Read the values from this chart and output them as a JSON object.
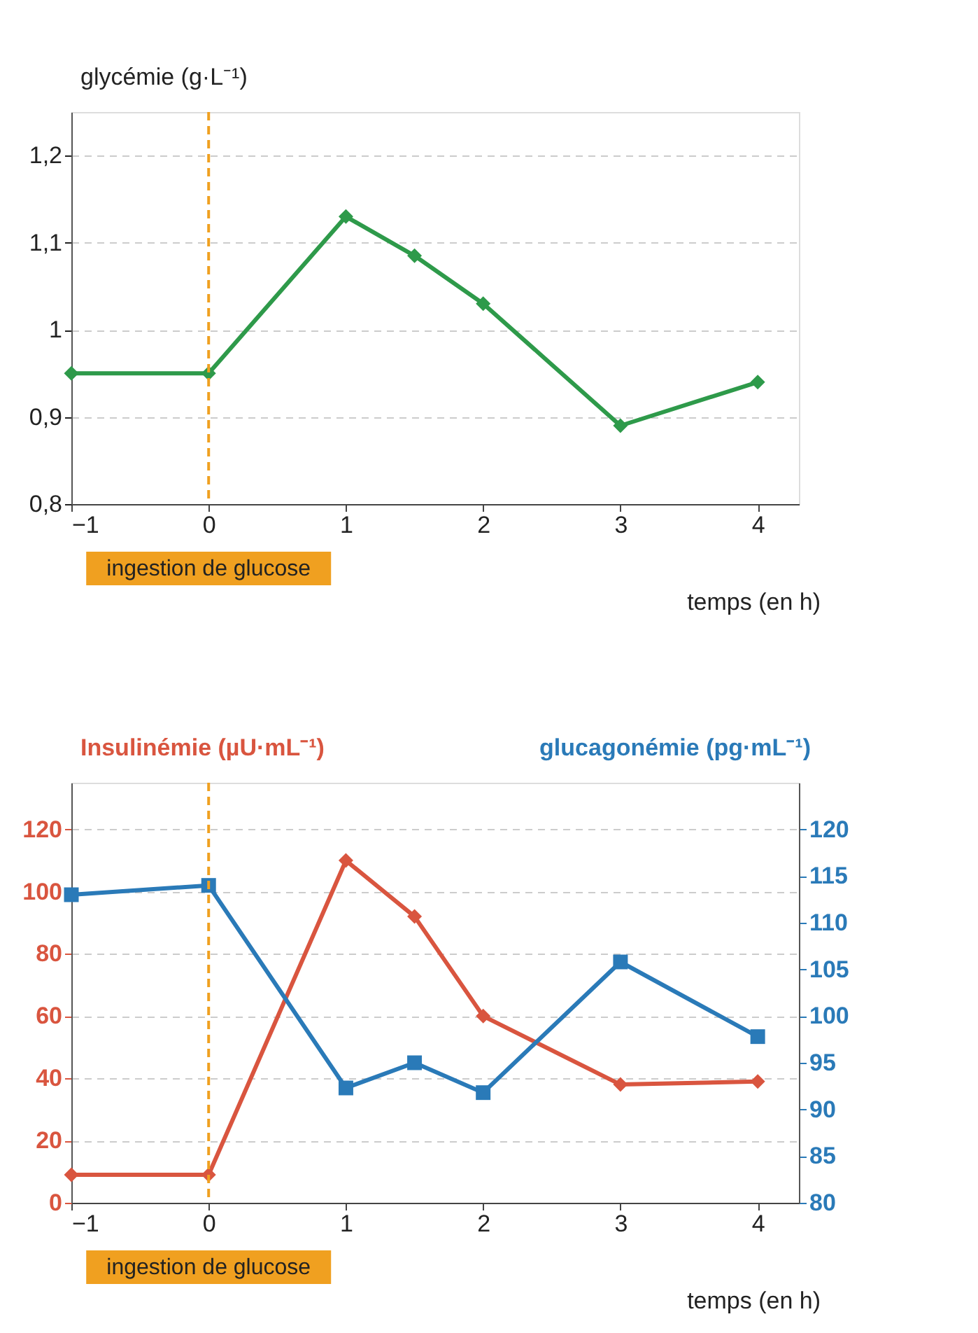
{
  "chart_data": [
    {
      "type": "line",
      "ylabel": "glycémie (g·L⁻¹)",
      "xlabel": "temps (en h)",
      "x": [
        -1,
        0,
        1,
        1.5,
        2,
        3,
        4
      ],
      "xlim": [
        -1,
        4.3
      ],
      "xticks": [
        -1,
        0,
        1,
        2,
        3,
        4
      ],
      "ylim": [
        0.8,
        1.25
      ],
      "yticks": [
        {
          "value": 0.8,
          "label": "0,8"
        },
        {
          "value": 0.9,
          "label": "0,9"
        },
        1,
        {
          "value": 1.1,
          "label": "1,1"
        },
        {
          "value": 1.2,
          "label": "1,2"
        }
      ],
      "grid": "y",
      "marker": "diamond",
      "line_style": "solid",
      "series": [
        {
          "color": "#2e9a4a",
          "values": [
            0.95,
            0.95,
            1.13,
            1.085,
            1.03,
            0.89,
            0.94
          ]
        }
      ],
      "ref_lines": [
        {
          "axis": "x",
          "value": 0,
          "label": "ingestion de glucose",
          "color": "#f0a020",
          "line_style": "dashed"
        }
      ]
    },
    {
      "type": "line",
      "ylabel": "Insulinémie (µU·mL⁻¹)",
      "y2label": "glucagonémie (pg·mL⁻¹)",
      "xlabel": "temps (en h)",
      "x": [
        -1,
        0,
        1,
        1.5,
        2,
        3,
        4
      ],
      "xlim": [
        -1,
        4.3
      ],
      "xticks": [
        -1,
        0,
        1,
        2,
        3,
        4
      ],
      "ylim": [
        0,
        135
      ],
      "yticks": [
        0,
        20,
        40,
        60,
        80,
        100,
        120
      ],
      "y2lim": [
        80,
        125
      ],
      "y2ticks": [
        80,
        85,
        90,
        95,
        100,
        105,
        110,
        115,
        120
      ],
      "grid": "y",
      "line_style": "solid",
      "series": [
        {
          "color": "#d9553f",
          "marker": "diamond",
          "values": [
            9,
            9,
            110,
            92,
            60,
            38,
            39
          ]
        },
        {
          "color": "#2a7ab8",
          "marker": "square",
          "axis": "y2",
          "values": [
            113,
            114,
            92.3,
            95,
            91.8,
            105.8,
            97.8
          ]
        }
      ],
      "ref_lines": [
        {
          "axis": "x",
          "value": 0,
          "label": "ingestion de glucose",
          "color": "#f0a020",
          "line_style": "dashed"
        }
      ]
    }
  ]
}
